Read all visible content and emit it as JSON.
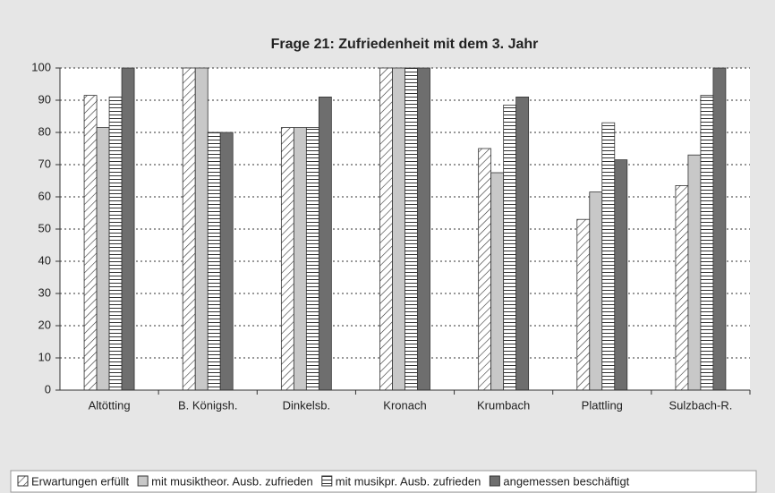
{
  "chart_data": {
    "type": "bar",
    "title": "Frage 21: Zufriedenheit mit dem 3. Jahr",
    "categories": [
      "Altötting",
      "B. Königsh.",
      "Dinkelsb.",
      "Kronach",
      "Krumbach",
      "Plattling",
      "Sulzbach-R."
    ],
    "series": [
      {
        "name": "Erwartungen erfüllt",
        "color": "#ffffff",
        "pattern": "diagonal",
        "values": [
          91.5,
          100,
          81.5,
          100,
          75,
          53,
          63.5
        ]
      },
      {
        "name": "mit musiktheor. Ausb. zufrieden",
        "color": "#c8c8c8",
        "pattern": "solid",
        "values": [
          81.5,
          100,
          81.5,
          100,
          67.5,
          61.5,
          73
        ]
      },
      {
        "name": "mit musikpr. Ausb. zufrieden",
        "color": "#ffffff",
        "pattern": "horizontal",
        "values": [
          91,
          80,
          81.5,
          100,
          88.5,
          83,
          91.5
        ]
      },
      {
        "name": "angemessen beschäftigt",
        "color": "#6e6e6e",
        "pattern": "solid",
        "values": [
          100,
          80,
          91,
          100,
          91,
          71.5,
          100
        ]
      }
    ],
    "ylim": [
      0,
      100
    ],
    "yticks": [
      0,
      10,
      20,
      30,
      40,
      50,
      60,
      70,
      80,
      90,
      100
    ],
    "grid": true,
    "legend": "bottom"
  }
}
